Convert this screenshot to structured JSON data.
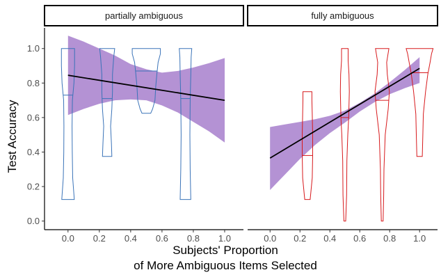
{
  "chart_data": {
    "type": "violin",
    "ylabel": "Test Accuracy",
    "xlabel_lines": [
      "Subjects' Proportion",
      "of More Ambiguous Items Selected"
    ],
    "xlim": [
      -0.15,
      1.12
    ],
    "ylim": [
      -0.05,
      1.12
    ],
    "x_ticks": [
      0.0,
      0.2,
      0.4,
      0.6,
      0.8,
      1.0
    ],
    "x_tick_labels": [
      "0.0",
      "0.2",
      "0.4",
      "0.6",
      "0.8",
      "1.0"
    ],
    "y_ticks": [
      0.0,
      0.2,
      0.4,
      0.6,
      0.8,
      1.0
    ],
    "y_tick_labels": [
      "0.0",
      "0.2",
      "0.4",
      "0.6",
      "0.8",
      "1.0"
    ],
    "grid": false,
    "band_color": "#a77fcc",
    "line_color": "#000000",
    "panels": [
      {
        "strip": "partially ambiguous",
        "violin_color": "#3a73b8",
        "fit_line": [
          [
            0.0,
            0.845
          ],
          [
            1.0,
            0.7
          ]
        ],
        "ci_band": {
          "x": [
            0.0,
            0.1,
            0.2,
            0.3,
            0.4,
            0.5,
            0.6,
            0.7,
            0.8,
            0.9,
            1.0
          ],
          "lower": [
            0.615,
            0.65,
            0.68,
            0.7,
            0.705,
            0.7,
            0.67,
            0.63,
            0.575,
            0.52,
            0.455
          ],
          "upper": [
            1.075,
            1.04,
            1.0,
            0.96,
            0.91,
            0.88,
            0.86,
            0.87,
            0.89,
            0.915,
            0.945
          ]
        },
        "violins": [
          {
            "x": 0.0,
            "median": 0.73,
            "profile": [
              [
                0.125,
                0.04
              ],
              [
                0.25,
                0.03
              ],
              [
                0.4,
                0.027
              ],
              [
                0.55,
                0.026
              ],
              [
                0.7,
                0.028
              ],
              [
                0.8,
                0.038
              ],
              [
                0.9,
                0.042
              ],
              [
                1.0,
                0.042
              ]
            ]
          },
          {
            "x": 0.25,
            "median": 0.71,
            "profile": [
              [
                0.375,
                0.03
              ],
              [
                0.45,
                0.027
              ],
              [
                0.55,
                0.022
              ],
              [
                0.65,
                0.03
              ],
              [
                0.75,
                0.034
              ],
              [
                0.85,
                0.034
              ],
              [
                0.95,
                0.042
              ],
              [
                1.0,
                0.048
              ]
            ]
          },
          {
            "x": 0.5,
            "median": 0.87,
            "profile": [
              [
                0.625,
                0.028
              ],
              [
                0.65,
                0.04
              ],
              [
                0.7,
                0.055
              ],
              [
                0.78,
                0.06
              ],
              [
                0.86,
                0.068
              ],
              [
                0.92,
                0.075
              ],
              [
                0.97,
                0.09
              ],
              [
                1.0,
                0.09
              ]
            ]
          },
          {
            "x": 0.75,
            "median": 0.71,
            "profile": [
              [
                0.125,
                0.034
              ],
              [
                0.3,
                0.03
              ],
              [
                0.5,
                0.028
              ],
              [
                0.7,
                0.03
              ],
              [
                0.85,
                0.034
              ],
              [
                0.95,
                0.036
              ],
              [
                1.0,
                0.04
              ]
            ]
          }
        ]
      },
      {
        "strip": "fully ambiguous",
        "violin_color": "#d7191c",
        "fit_line": [
          [
            0.0,
            0.365
          ],
          [
            1.0,
            0.885
          ]
        ],
        "ci_band": {
          "x": [
            0.0,
            0.1,
            0.2,
            0.3,
            0.4,
            0.5,
            0.6,
            0.7,
            0.8,
            0.9,
            1.0
          ],
          "lower": [
            0.18,
            0.27,
            0.36,
            0.44,
            0.51,
            0.57,
            0.635,
            0.69,
            0.735,
            0.77,
            0.8
          ],
          "upper": [
            0.545,
            0.56,
            0.575,
            0.59,
            0.61,
            0.64,
            0.685,
            0.74,
            0.805,
            0.875,
            0.95
          ]
        },
        "violins": [
          {
            "x": 0.25,
            "median": 0.38,
            "profile": [
              [
                0.125,
                0.018
              ],
              [
                0.25,
                0.032
              ],
              [
                0.38,
                0.035
              ],
              [
                0.5,
                0.035
              ],
              [
                0.62,
                0.032
              ],
              [
                0.7,
                0.03
              ],
              [
                0.75,
                0.03
              ]
            ]
          },
          {
            "x": 0.5,
            "median": 0.6,
            "profile": [
              [
                0.0,
                0.006
              ],
              [
                0.15,
                0.012
              ],
              [
                0.35,
                0.014
              ],
              [
                0.5,
                0.02
              ],
              [
                0.6,
                0.026
              ],
              [
                0.75,
                0.03
              ],
              [
                0.85,
                0.028
              ],
              [
                0.93,
                0.022
              ],
              [
                1.0,
                0.022
              ]
            ]
          },
          {
            "x": 0.75,
            "median": 0.7,
            "profile": [
              [
                0.0,
                0.006
              ],
              [
                0.15,
                0.01
              ],
              [
                0.3,
                0.012
              ],
              [
                0.5,
                0.02
              ],
              [
                0.65,
                0.04
              ],
              [
                0.75,
                0.048
              ],
              [
                0.85,
                0.034
              ],
              [
                0.92,
                0.03
              ],
              [
                1.0,
                0.045
              ]
            ]
          },
          {
            "x": 1.0,
            "median": 0.86,
            "profile": [
              [
                0.375,
                0.018
              ],
              [
                0.5,
                0.022
              ],
              [
                0.62,
                0.025
              ],
              [
                0.75,
                0.04
              ],
              [
                0.85,
                0.055
              ],
              [
                0.92,
                0.07
              ],
              [
                0.97,
                0.08
              ],
              [
                1.0,
                0.09
              ]
            ]
          }
        ]
      }
    ]
  }
}
